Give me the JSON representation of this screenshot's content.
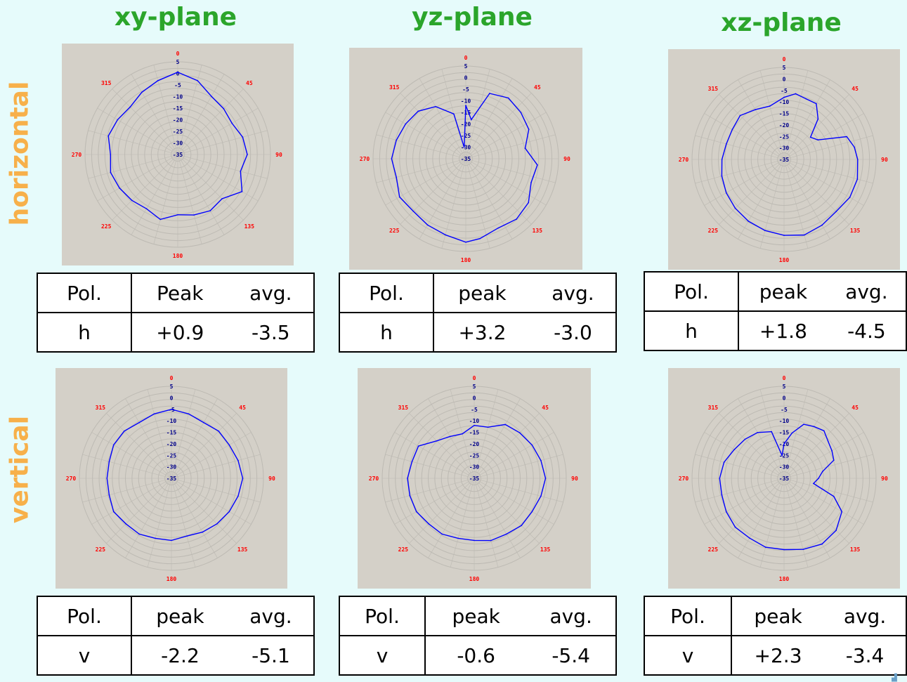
{
  "column_titles": [
    "xy-plane",
    "yz-plane",
    "xz-plane"
  ],
  "row_labels": [
    "horizontal",
    "vertical"
  ],
  "polar_labels": {
    "angles": [
      "0",
      "45",
      "90",
      "135",
      "180",
      "225",
      "270",
      "315"
    ],
    "rings": [
      "5",
      "0",
      "-5",
      "-10",
      "-15",
      "-20",
      "-25",
      "-30",
      "-35"
    ]
  },
  "colors": {
    "trace": "#0000ff",
    "angle_text": "#ff0000",
    "ring_text": "#00008b",
    "plot_bg": "#d4d0c8",
    "grid": "#bdbab3",
    "title": "#2ba52b",
    "row_label": "#f7b04a"
  },
  "tables": [
    {
      "pol_header": "Pol.",
      "peak_header": "Peak",
      "avg_header": "avg.",
      "pol": "h",
      "peak": "+0.9",
      "avg": "-3.5"
    },
    {
      "pol_header": "Pol.",
      "peak_header": "peak",
      "avg_header": "avg.",
      "pol": "h",
      "peak": "+3.2",
      "avg": "-3.0"
    },
    {
      "pol_header": "Pol.",
      "peak_header": "peak",
      "avg_header": "avg.",
      "pol": "h",
      "peak": "+1.8",
      "avg": "-4.5"
    },
    {
      "pol_header": "Pol.",
      "peak_header": "peak",
      "avg_header": "avg.",
      "pol": "v",
      "peak": "-2.2",
      "avg": "-5.1"
    },
    {
      "pol_header": "Pol.",
      "peak_header": "peak",
      "avg_header": "avg.",
      "pol": "v",
      "peak": "-0.6",
      "avg": "-5.4"
    },
    {
      "pol_header": "Pol.",
      "peak_header": "peak",
      "avg_header": "avg.",
      "pol": "v",
      "peak": "+2.3",
      "avg": "-3.4"
    }
  ],
  "chart_data": [
    {
      "type": "polar",
      "plane": "xy-plane",
      "polarization": "horizontal",
      "rlim": [
        -35,
        5
      ],
      "series": [
        {
          "angles_deg": [
            0,
            15,
            30,
            45,
            60,
            75,
            90,
            105,
            120,
            135,
            150,
            165,
            180,
            195,
            210,
            225,
            240,
            255,
            270,
            285,
            300,
            315,
            330,
            345
          ],
          "values_db": [
            0.5,
            -2,
            -6,
            -7,
            -8,
            -6,
            -5,
            -7,
            -3,
            -8,
            -7,
            -8,
            -9,
            -6,
            -8,
            -7,
            -6,
            -5,
            -6,
            -4,
            -5,
            -6,
            -4,
            -2
          ]
        }
      ]
    },
    {
      "type": "polar",
      "plane": "yz-plane",
      "polarization": "horizontal",
      "rlim": [
        -35,
        5
      ],
      "series": [
        {
          "angles_deg": [
            0,
            8,
            20,
            35,
            50,
            65,
            80,
            95,
            110,
            125,
            140,
            155,
            170,
            180,
            195,
            210,
            225,
            240,
            255,
            270,
            285,
            300,
            315,
            330,
            345,
            352
          ],
          "values_db": [
            -12,
            -18,
            -5,
            -3,
            -4,
            -5,
            -9,
            -4,
            -5,
            -2,
            -1,
            -2,
            0,
            1,
            -1,
            -2,
            -3,
            -2,
            -4,
            -3,
            -4,
            -5,
            -6,
            -9,
            -15,
            -30
          ]
        }
      ]
    },
    {
      "type": "polar",
      "plane": "xz-plane",
      "polarization": "horizontal",
      "rlim": [
        -35,
        5
      ],
      "series": [
        {
          "angles_deg": [
            0,
            10,
            20,
            30,
            40,
            50,
            60,
            70,
            80,
            90,
            105,
            120,
            135,
            150,
            165,
            180,
            195,
            210,
            225,
            240,
            255,
            270,
            285,
            300,
            315,
            330,
            345
          ],
          "values_db": [
            -8,
            -6,
            -7,
            -7,
            -12,
            -20,
            -18,
            -6,
            -4,
            -3,
            -2,
            -2,
            -3,
            -2,
            -1,
            -2,
            -3,
            -4,
            -5,
            -6,
            -7,
            -8,
            -9,
            -9,
            -8,
            -10,
            -11
          ]
        }
      ]
    },
    {
      "type": "polar",
      "plane": "xy-plane",
      "polarization": "vertical",
      "rlim": [
        -35,
        5
      ],
      "series": [
        {
          "angles_deg": [
            0,
            15,
            30,
            45,
            60,
            75,
            90,
            105,
            120,
            135,
            150,
            165,
            180,
            195,
            210,
            225,
            240,
            255,
            270,
            285,
            300,
            315,
            330,
            345
          ],
          "values_db": [
            -5,
            -6,
            -7,
            -6,
            -6,
            -5,
            -4,
            -5,
            -6,
            -7,
            -8,
            -9,
            -8,
            -8,
            -7,
            -7,
            -6,
            -7,
            -7,
            -7,
            -6,
            -6,
            -7,
            -6
          ]
        }
      ]
    },
    {
      "type": "polar",
      "plane": "yz-plane",
      "polarization": "vertical",
      "rlim": [
        -35,
        5
      ],
      "series": [
        {
          "angles_deg": [
            0,
            15,
            30,
            45,
            60,
            75,
            90,
            105,
            120,
            135,
            150,
            165,
            180,
            195,
            210,
            225,
            240,
            255,
            270,
            285,
            300,
            315,
            330,
            345
          ],
          "values_db": [
            -12,
            -12,
            -8,
            -7,
            -6,
            -5,
            -4,
            -5,
            -6,
            -6,
            -7,
            -7,
            -8,
            -8,
            -7,
            -7,
            -6,
            -6,
            -6,
            -7,
            -7,
            -12,
            -14,
            -15
          ]
        }
      ]
    },
    {
      "type": "polar",
      "plane": "xz-plane",
      "polarization": "vertical",
      "rlim": [
        -35,
        5
      ],
      "series": [
        {
          "angles_deg": [
            0,
            10,
            20,
            30,
            40,
            50,
            60,
            70,
            80,
            90,
            100,
            110,
            120,
            135,
            150,
            165,
            180,
            195,
            210,
            225,
            240,
            255,
            270,
            285,
            300,
            315,
            330,
            345,
            355
          ],
          "values_db": [
            -20,
            -15,
            -10,
            -9,
            -8,
            -10,
            -11,
            -12,
            -18,
            -20,
            -22,
            -12,
            -6,
            -3,
            -2,
            -3,
            -4,
            -4,
            -5,
            -5,
            -6,
            -7,
            -7,
            -8,
            -10,
            -11,
            -12,
            -14,
            -25
          ]
        }
      ]
    }
  ]
}
